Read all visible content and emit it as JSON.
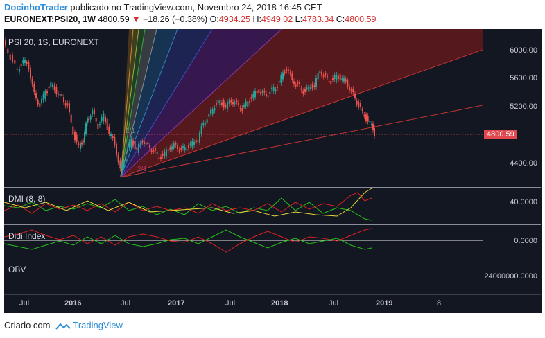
{
  "header": {
    "user": "DocinhoTrader",
    "published_text": "publicado no TradingView.com, Novembro 24, 2018 16:45 CET",
    "symbol": "EURONEXT:PSI20, 1W",
    "last": "4800.59",
    "change": "−18.26 (−0.38%)",
    "o_label": "O:",
    "o_value": "4934.25",
    "h_label": "H:",
    "h_value": "4949.02",
    "l_label": "L:",
    "l_value": "4783.34",
    "c_label": "C:",
    "c_value": "4800.59"
  },
  "panes": {
    "main_label": "PSI 20, 1S, EURONEXT",
    "dmi_label": "DMI (8, 8)",
    "didi_label": "Didi Index",
    "obv_label": "OBV"
  },
  "price_axis": [
    "6000.00",
    "5600.00",
    "5200.00",
    "4400.00"
  ],
  "last_price_tag": "4800.59",
  "dmi_axis": "40.0000",
  "didi_axis": "0.0000",
  "obv_axis": "24000000.0000",
  "time_axis": [
    "Jul",
    "2016",
    "Jul",
    "2017",
    "Jul",
    "2018",
    "Jul",
    "2019",
    "8"
  ],
  "gann_labels": [
    "1/1",
    "2/1"
  ],
  "colors": {
    "up": "#26a69a",
    "down": "#ef5350",
    "background": "#131722",
    "tag": "#e0484d"
  },
  "footer": {
    "created": "Criado com",
    "brand": "TradingView",
    "logo": "tradingview-logo-icon"
  }
}
